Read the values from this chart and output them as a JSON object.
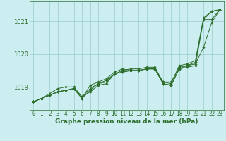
{
  "title": "Graphe pression niveau de la mer (hPa)",
  "background_color": "#cceef0",
  "grid_color": "#99cccc",
  "line_color": "#2d6e2d",
  "x_labels": [
    "0",
    "1",
    "2",
    "3",
    "4",
    "5",
    "6",
    "7",
    "8",
    "9",
    "10",
    "11",
    "12",
    "13",
    "14",
    "15",
    "16",
    "17",
    "18",
    "19",
    "20",
    "21",
    "22",
    "23"
  ],
  "ylim": [
    1018.3,
    1021.6
  ],
  "yticks": [
    1019,
    1020,
    1021
  ],
  "series": [
    [
      1018.55,
      1018.65,
      1018.75,
      1018.85,
      1018.9,
      1018.95,
      1018.7,
      1018.85,
      1019.05,
      1019.1,
      1019.4,
      1019.45,
      1019.5,
      1019.5,
      1019.55,
      1019.55,
      1019.1,
      1019.05,
      1019.55,
      1019.6,
      1019.65,
      1021.05,
      1021.05,
      1021.35
    ],
    [
      1018.55,
      1018.65,
      1018.75,
      1018.85,
      1018.9,
      1018.95,
      1018.65,
      1019.05,
      1019.15,
      1019.25,
      1019.45,
      1019.55,
      1019.5,
      1019.5,
      1019.55,
      1019.55,
      1019.1,
      1019.05,
      1019.55,
      1019.65,
      1019.75,
      1021.05,
      1021.3,
      1021.35
    ],
    [
      1018.55,
      1018.65,
      1018.8,
      1018.95,
      1019.0,
      1019.0,
      1018.7,
      1018.95,
      1019.1,
      1019.2,
      1019.4,
      1019.5,
      1019.55,
      1019.55,
      1019.6,
      1019.6,
      1019.15,
      1019.1,
      1019.65,
      1019.7,
      1019.8,
      1021.1,
      1021.3,
      1021.35
    ],
    [
      1018.55,
      1018.65,
      1018.75,
      1018.85,
      1018.9,
      1018.95,
      1018.65,
      1018.9,
      1019.1,
      1019.15,
      1019.4,
      1019.45,
      1019.5,
      1019.5,
      1019.55,
      1019.55,
      1019.15,
      1019.15,
      1019.6,
      1019.65,
      1019.7,
      1020.2,
      1020.95,
      1021.35
    ]
  ],
  "title_fontsize": 6.5,
  "tick_fontsize": 5.5,
  "ytick_fontsize": 6.0
}
